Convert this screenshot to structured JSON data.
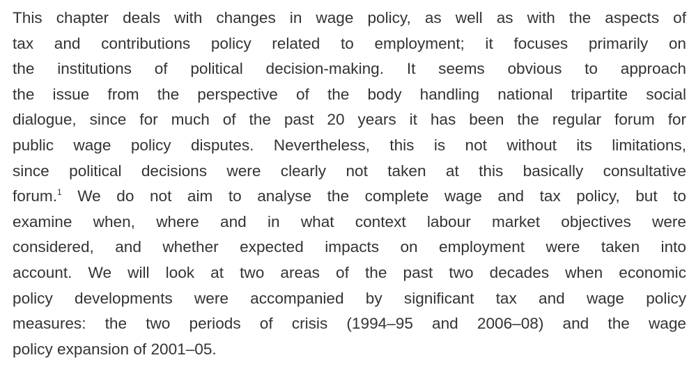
{
  "paragraph": {
    "lines": [
      "This chapter deals with changes in wage policy, as well as with the aspects of",
      "tax and contributions policy related to employment; it focuses primarily on",
      "the institutions of political decision-making. It seems obvious to approach",
      "the issue from the perspective of the body handling national tripartite social",
      "dialogue, since for much of the past 20 years it has been the regular forum for",
      "public wage policy disputes. Nevertheless, this is not without its limitations,",
      "since political decisions were clearly not taken at this basically consultative",
      {
        "text_before": "forum.",
        "footnote": "1",
        "text_after": " We do not aim to analyse the complete wage and tax policy, but to"
      },
      "examine when, where and in what context labour market objectives were",
      "considered, and whether expected impacts on employment were taken into",
      "account. We will look at two areas of the past two decades when economic",
      "policy developments were accompanied by significant tax and wage policy",
      "measures: the two periods of crisis (1994–95 and 2006–08) and the wage",
      "policy expansion of 2001–05."
    ]
  }
}
